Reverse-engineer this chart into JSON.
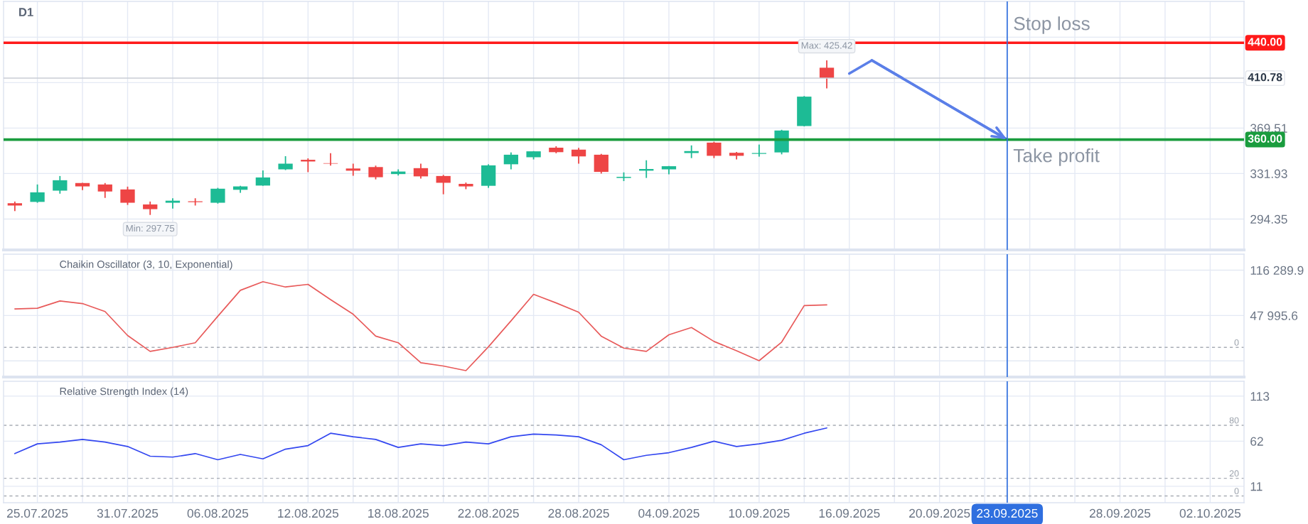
{
  "chart_data": [
    {
      "type": "candlestick",
      "title": "D1",
      "categories": [
        null,
        "25.07.2025",
        null,
        null,
        null,
        "31.07.2025",
        null,
        null,
        null,
        "06.08.2025",
        null,
        null,
        null,
        "12.08.2025",
        null,
        null,
        null,
        "18.08.2025",
        null,
        null,
        null,
        "22.08.2025",
        null,
        null,
        null,
        "28.08.2025",
        null,
        null,
        null,
        "04.09.2025",
        null,
        null,
        null,
        "10.09.2025",
        null,
        null,
        null,
        "16.09.2025",
        null,
        null,
        null,
        "20.09.2025",
        null,
        null,
        "23.09.2025",
        null,
        null,
        null,
        null,
        "28.09.2025",
        null,
        null,
        null,
        "02.10.2025",
        null
      ],
      "ohlc": [
        [
          307.4,
          308.8,
          300.9,
          305.5
        ],
        [
          308.5,
          322.9,
          307.8,
          316.4
        ],
        [
          317.8,
          329.9,
          315.3,
          326.4
        ],
        [
          324.1,
          324.3,
          318.3,
          321.3
        ],
        [
          322.9,
          324.1,
          311.8,
          317.1
        ],
        [
          318.8,
          321.1,
          306.0,
          307.8
        ],
        [
          306.4,
          308.8,
          297.75,
          302.5
        ],
        [
          307.8,
          311.5,
          303.0,
          309.5
        ],
        [
          309.0,
          311.5,
          305.5,
          308.3
        ],
        [
          307.8,
          320.1,
          307.1,
          319.4
        ],
        [
          318.5,
          321.8,
          316.0,
          321.3
        ],
        [
          322.0,
          334.5,
          321.8,
          328.7
        ],
        [
          335.4,
          346.3,
          334.8,
          340.1
        ],
        [
          343.3,
          344.5,
          333.1,
          341.9
        ],
        [
          340.5,
          348.7,
          338.5,
          340.1
        ],
        [
          336.1,
          340.1,
          330.1,
          334.3
        ],
        [
          337.3,
          338.5,
          327.1,
          328.9
        ],
        [
          331.5,
          335.4,
          330.3,
          333.6
        ],
        [
          336.4,
          340.1,
          327.8,
          329.6
        ],
        [
          329.9,
          330.8,
          314.8,
          324.3
        ],
        [
          323.4,
          324.5,
          319.0,
          321.3
        ],
        [
          321.8,
          339.6,
          320.1,
          338.7
        ],
        [
          339.6,
          349.4,
          335.4,
          347.5
        ],
        [
          345.4,
          350.5,
          343.6,
          350.3
        ],
        [
          353.3,
          354.5,
          348.7,
          349.6
        ],
        [
          351.7,
          353.1,
          340.1,
          346.1
        ],
        [
          347.5,
          348.2,
          331.9,
          333.3
        ],
        [
          328.3,
          332.9,
          325.7,
          329.2
        ],
        [
          334.3,
          342.9,
          328.3,
          335.7
        ],
        [
          335.4,
          338.2,
          331.3,
          338.0
        ],
        [
          348.9,
          355.2,
          344.7,
          350.5
        ],
        [
          357.5,
          358.2,
          344.7,
          346.6
        ],
        [
          349.1,
          349.8,
          343.6,
          346.6
        ],
        [
          348.2,
          355.9,
          345.9,
          348.9
        ],
        [
          349.4,
          368.1,
          347.8,
          367.5
        ],
        [
          371.2,
          396.0,
          370.9,
          395.5
        ],
        [
          419.4,
          425.42,
          402.3,
          410.78
        ],
        null,
        null,
        null,
        null,
        null,
        null,
        null,
        null,
        null,
        null,
        null,
        null,
        null,
        null,
        null,
        null,
        null,
        null
      ],
      "colors": [
        "#ee4545",
        "#1dbb95",
        "#1dbb95",
        "#ee4545",
        "#ee4545",
        "#ee4545",
        "#ee4545",
        "#1dbb95",
        "#ee4545",
        "#1dbb95",
        "#1dbb95",
        "#1dbb95",
        "#1dbb95",
        "#ee4545",
        "#ee4545",
        "#ee4545",
        "#ee4545",
        "#1dbb95",
        "#ee4545",
        "#ee4545",
        "#ee4545",
        "#1dbb95",
        "#1dbb95",
        "#1dbb95",
        "#ee4545",
        "#ee4545",
        "#ee4545",
        "#1dbb95",
        "#1dbb95",
        "#1dbb95",
        "#1dbb95",
        "#ee4545",
        "#ee4545",
        "#1dbb95",
        "#1dbb95",
        "#1dbb95",
        "#ee4545",
        null,
        null,
        null,
        null,
        null,
        null,
        null,
        null,
        null,
        null,
        null,
        null,
        null,
        null,
        null,
        null,
        null,
        null
      ],
      "series": [
        {
          "type": "line",
          "color": "#5b7fe8",
          "values": [
            null,
            null,
            null,
            null,
            null,
            null,
            null,
            null,
            null,
            null,
            null,
            null,
            null,
            null,
            null,
            null,
            null,
            null,
            null,
            null,
            null,
            null,
            null,
            null,
            null,
            null,
            null,
            null,
            null,
            null,
            null,
            null,
            null,
            null,
            null,
            null,
            null,
            414.6,
            425.5,
            null,
            null,
            null,
            null,
            null,
            360,
            null,
            null,
            null,
            null,
            null,
            null,
            null,
            null,
            null,
            null
          ]
        }
      ],
      "ylim": [
        268.8,
        474.2
      ],
      "yticks": [
        294.35,
        331.93,
        369.51,
        {
          "value": 407.09,
          "label": null
        },
        {
          "value": 444.66,
          "label": null
        }
      ],
      "ref_lines": [
        {
          "axis": "y",
          "value": 440,
          "label": "440.00",
          "color": "#ff1a1a"
        },
        {
          "axis": "y",
          "value": 410.78,
          "label": "410.78",
          "color": "#c8ccd4"
        },
        {
          "axis": "y",
          "value": 360,
          "label": "360.00",
          "color": "#1a9c3e"
        },
        {
          "axis": "x",
          "value": "23.09.2025",
          "color": "#2f6fdf"
        }
      ],
      "annotations": [
        {
          "text": "Min: 297.75",
          "y": 297.75
        },
        {
          "text": "Max: 425.42",
          "y": 425.42
        },
        {
          "text": "Stop loss",
          "x": "23.09.2025",
          "y": 440
        },
        {
          "text": "Take profit",
          "x": "23.09.2025",
          "y": 360
        }
      ],
      "grid": true,
      "tick_labels": "y"
    },
    {
      "type": "line",
      "title": "Chaikin Oscillator (3, 10, Exponential)",
      "categories": [
        null,
        "25.07.2025",
        null,
        null,
        null,
        "31.07.2025",
        null,
        null,
        null,
        "06.08.2025",
        null,
        null,
        null,
        "12.08.2025",
        null,
        null,
        null,
        "18.08.2025",
        null,
        null,
        null,
        "22.08.2025",
        null,
        null,
        null,
        "28.08.2025",
        null,
        null,
        null,
        "04.09.2025",
        null,
        null,
        null,
        "10.09.2025",
        null,
        null,
        null,
        "16.09.2025",
        null,
        null,
        null,
        "20.09.2025",
        null,
        null,
        "23.09.2025",
        null,
        null,
        null,
        null,
        "28.09.2025",
        null,
        null,
        null,
        "02.10.2025",
        null
      ],
      "series": [
        {
          "color": "#e85a5a",
          "values": [
            58000,
            59000,
            70000,
            66000,
            54000,
            18000,
            -6000,
            0,
            7000,
            47000,
            86000,
            99000,
            91000,
            95000,
            72000,
            50000,
            17000,
            7000,
            -23000,
            -28000,
            -35000,
            1000,
            40000,
            80000,
            67000,
            53000,
            17000,
            -1000,
            -6000,
            19000,
            30000,
            9000,
            -5000,
            -20000,
            8000,
            63000,
            64000,
            null,
            null,
            null,
            null,
            null,
            null,
            null,
            null,
            null,
            null,
            null,
            null,
            null,
            null,
            null,
            null,
            null,
            null
          ]
        }
      ],
      "ylim": [
        -44600,
        140400
      ],
      "yticks": [
        {
          "value": -20298.7,
          "label": null
        },
        {
          "value": 47995.6,
          "label": "47 995.6"
        },
        {
          "value": 116289.9,
          "label": "116 289.9"
        }
      ],
      "ref_lines": [
        {
          "axis": "y",
          "value": 0,
          "label": "0",
          "line_style": "dashed"
        },
        {
          "axis": "x",
          "value": "23.09.2025",
          "color": "#2f6fdf"
        }
      ],
      "grid": true,
      "tick_labels": "y"
    },
    {
      "type": "line",
      "title": "Relative Strength Index (14)",
      "categories": [
        null,
        "25.07.2025",
        null,
        null,
        null,
        "31.07.2025",
        null,
        null,
        null,
        "06.08.2025",
        null,
        null,
        null,
        "12.08.2025",
        null,
        null,
        null,
        "18.08.2025",
        null,
        null,
        null,
        "22.08.2025",
        null,
        null,
        null,
        "28.08.2025",
        null,
        null,
        null,
        "04.09.2025",
        null,
        null,
        null,
        "10.09.2025",
        null,
        null,
        null,
        "16.09.2025",
        null,
        null,
        null,
        "20.09.2025",
        null,
        null,
        "23.09.2025",
        null,
        null,
        null,
        null,
        "28.09.2025",
        null,
        null,
        null,
        "02.10.2025",
        null
      ],
      "series": [
        {
          "color": "#3347f0",
          "values": [
            48,
            59,
            61,
            64,
            61,
            56,
            45,
            44,
            48,
            41,
            47,
            42,
            53,
            57,
            71,
            67,
            64,
            55,
            59,
            57,
            61,
            59,
            67,
            70,
            69,
            67,
            58,
            41,
            46,
            49,
            55,
            62,
            56,
            59,
            63,
            71,
            77,
            null,
            null,
            null,
            null,
            null,
            null,
            null,
            null,
            null,
            null,
            null,
            null,
            null,
            null,
            null,
            null,
            null,
            null
          ]
        }
      ],
      "ylim": [
        -7.6,
        129.8
      ],
      "yticks": [
        11,
        62,
        113
      ],
      "ref_lines": [
        {
          "axis": "y",
          "value": 80,
          "label": "80",
          "line_style": "dashed"
        },
        {
          "axis": "y",
          "value": 20,
          "label": "20",
          "line_style": "dashed"
        },
        {
          "axis": "y",
          "value": 0,
          "label": "0",
          "line_style": "dashed"
        },
        {
          "axis": "x",
          "value": "23.09.2025",
          "color": "#2f6fdf"
        }
      ],
      "grid": true
    }
  ]
}
